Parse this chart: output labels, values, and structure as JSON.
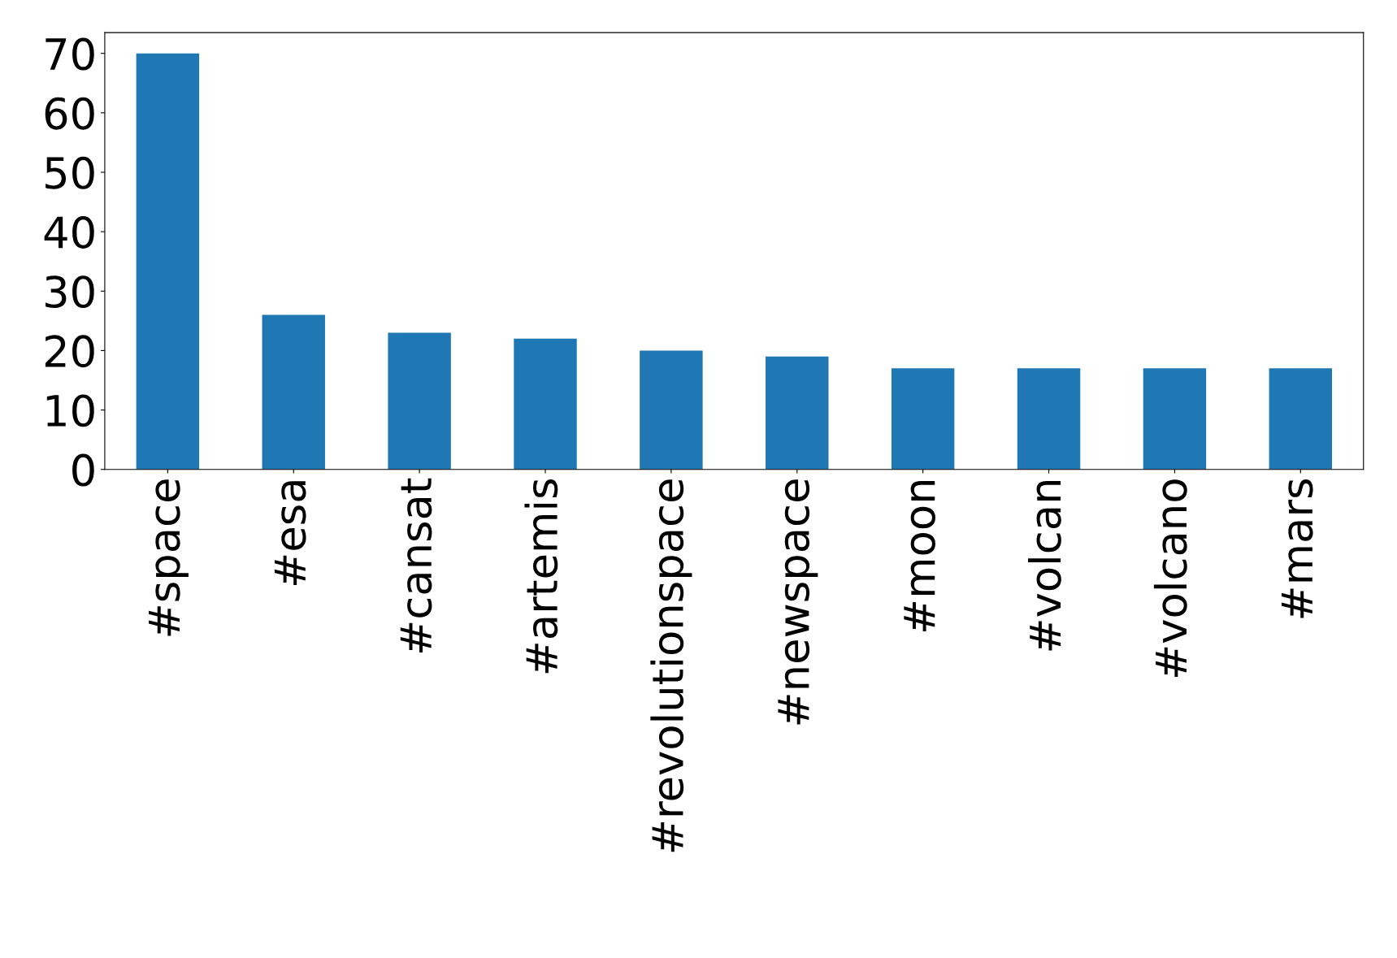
{
  "chart_data": {
    "type": "bar",
    "categories": [
      "#space",
      "#esa",
      "#cansat",
      "#artemis",
      "#revolutionspace",
      "#newspace",
      "#moon",
      "#volcan",
      "#volcano",
      "#mars"
    ],
    "values": [
      70,
      26,
      23,
      22,
      20,
      19,
      17,
      17,
      17,
      17
    ],
    "color": "#1f77b4",
    "ylim": [
      0,
      73.5
    ],
    "yticks": [
      0,
      10,
      20,
      30,
      40,
      50,
      60,
      70
    ],
    "grid": false,
    "legend": false
  }
}
